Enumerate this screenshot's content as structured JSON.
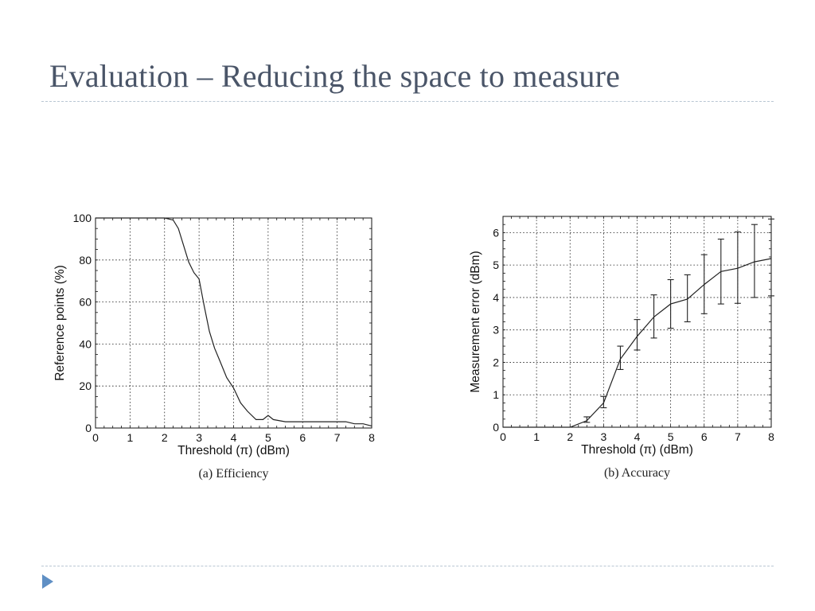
{
  "slide": {
    "title": "Evaluation – Reducing the space to measure",
    "accent_color": "#4a5568",
    "rule_color": "#b9c6d3",
    "bullet_color": "#5f8fc4",
    "bullet_icon": "triangle-bullet-icon"
  },
  "chart_data": [
    {
      "type": "line",
      "caption": "(a)  Efficiency",
      "xlabel": "Threshold (π) (dBm)",
      "ylabel": "Reference points (%)",
      "xlim": [
        0,
        8
      ],
      "ylim": [
        0,
        100
      ],
      "x_ticks": [
        "0",
        "1",
        "2",
        "3",
        "4",
        "5",
        "6",
        "7",
        "8"
      ],
      "y_ticks": [
        "0",
        "20",
        "40",
        "60",
        "80",
        "100"
      ],
      "grid": true,
      "series": [
        {
          "x": [
            0,
            1,
            2,
            2.25,
            2.4,
            2.55,
            2.7,
            2.85,
            3.0,
            3.15,
            3.3,
            3.45,
            3.6,
            3.8,
            4.0,
            4.2,
            4.4,
            4.65,
            4.85,
            5.0,
            5.15,
            5.5,
            6.0,
            6.5,
            7.0,
            7.25,
            7.5,
            7.75,
            8.0
          ],
          "y": [
            100,
            100,
            100,
            99,
            95,
            87,
            79,
            74,
            71,
            58,
            46,
            38,
            32,
            24,
            19,
            12,
            8,
            4,
            4,
            6,
            4,
            3,
            3,
            3,
            3,
            3,
            2,
            2,
            1
          ]
        }
      ]
    },
    {
      "type": "line",
      "caption": "(b)  Accuracy",
      "xlabel": "Threshold (π) (dBm)",
      "ylabel": "Measurement error (dBm)",
      "xlim": [
        0,
        8
      ],
      "ylim": [
        0,
        6.5
      ],
      "x_ticks": [
        "0",
        "1",
        "2",
        "3",
        "4",
        "5",
        "6",
        "7",
        "8"
      ],
      "y_ticks": [
        "0",
        "1",
        "2",
        "3",
        "4",
        "5",
        "6"
      ],
      "grid": true,
      "series": [
        {
          "x": [
            0,
            1,
            2,
            2.5,
            3.0,
            3.5,
            4.0,
            4.5,
            5.0,
            5.5,
            6.0,
            6.5,
            7.0,
            7.5,
            8.0
          ],
          "y": [
            0,
            0,
            0,
            0.2,
            0.75,
            2.1,
            2.8,
            3.4,
            3.8,
            3.95,
            4.4,
            4.8,
            4.9,
            5.1,
            5.2
          ],
          "error_bars": [
            {
              "x": 2.5,
              "low": 0.15,
              "high": 0.32
            },
            {
              "x": 3.0,
              "low": 0.6,
              "high": 0.95
            },
            {
              "x": 3.5,
              "low": 1.78,
              "high": 2.5
            },
            {
              "x": 4.0,
              "low": 2.38,
              "high": 3.32
            },
            {
              "x": 4.5,
              "low": 2.75,
              "high": 4.08
            },
            {
              "x": 5.0,
              "low": 3.05,
              "high": 4.55
            },
            {
              "x": 5.5,
              "low": 3.25,
              "high": 4.7
            },
            {
              "x": 6.0,
              "low": 3.5,
              "high": 5.32
            },
            {
              "x": 6.5,
              "low": 3.8,
              "high": 5.8
            },
            {
              "x": 7.0,
              "low": 3.82,
              "high": 6.02
            },
            {
              "x": 7.5,
              "low": 4.0,
              "high": 6.25
            },
            {
              "x": 8.0,
              "low": 4.05,
              "high": 6.42
            }
          ]
        }
      ]
    }
  ]
}
